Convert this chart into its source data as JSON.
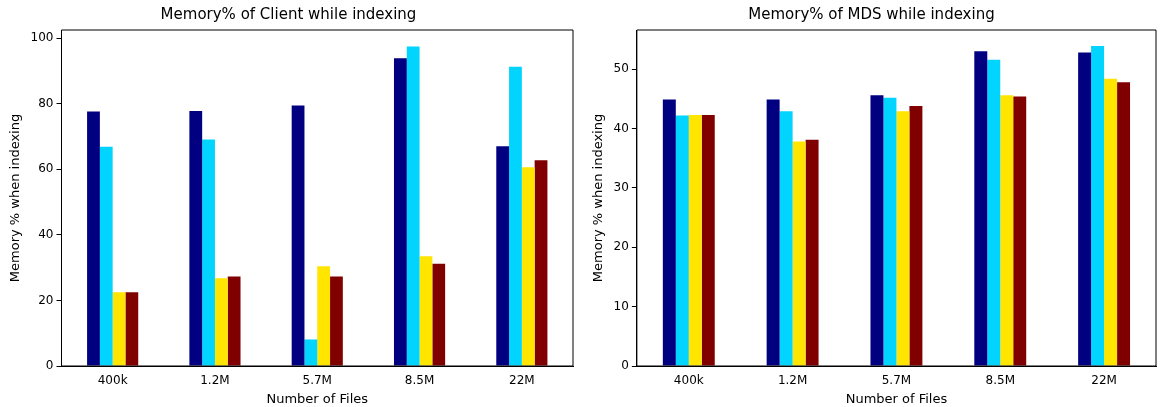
{
  "chart_data": [
    {
      "type": "bar",
      "title": "Memory% of Client while indexing",
      "xlabel": "Number of Files",
      "ylabel": "Memory % when indexing",
      "categories": [
        "400k",
        "1.2M",
        "5.7M",
        "8.5M",
        "22M"
      ],
      "ylim": [
        0,
        102.5
      ],
      "yticks": [
        0,
        20,
        40,
        60,
        80,
        100
      ],
      "grid": false,
      "legend": false,
      "series": [
        {
          "color": "#000080",
          "values": [
            77.6,
            77.8,
            79.5,
            93.9,
            67.0
          ]
        },
        {
          "color": "#00d4ff",
          "values": [
            66.9,
            69.1,
            8.1,
            97.5,
            91.3
          ]
        },
        {
          "color": "#ffe500",
          "values": [
            22.5,
            26.8,
            30.4,
            33.5,
            60.6
          ]
        },
        {
          "color": "#800000",
          "values": [
            22.5,
            27.3,
            27.3,
            31.2,
            62.8
          ]
        }
      ]
    },
    {
      "type": "bar",
      "title": "Memory% of MDS while indexing",
      "xlabel": "Number of Files",
      "ylabel": "Memory % when indexing",
      "categories": [
        "400k",
        "1.2M",
        "5.7M",
        "8.5M",
        "22M"
      ],
      "ylim": [
        0,
        56.6
      ],
      "yticks": [
        0,
        10,
        20,
        30,
        40,
        50
      ],
      "grid": false,
      "legend": false,
      "series": [
        {
          "color": "#000080",
          "values": [
            44.9,
            44.9,
            45.6,
            53.0,
            52.8
          ]
        },
        {
          "color": "#00d4ff",
          "values": [
            42.2,
            42.9,
            45.2,
            51.6,
            53.9
          ]
        },
        {
          "color": "#ffe500",
          "values": [
            42.3,
            37.8,
            42.9,
            45.6,
            48.4
          ]
        },
        {
          "color": "#800000",
          "values": [
            42.3,
            38.1,
            43.8,
            45.4,
            47.8
          ]
        }
      ]
    }
  ]
}
